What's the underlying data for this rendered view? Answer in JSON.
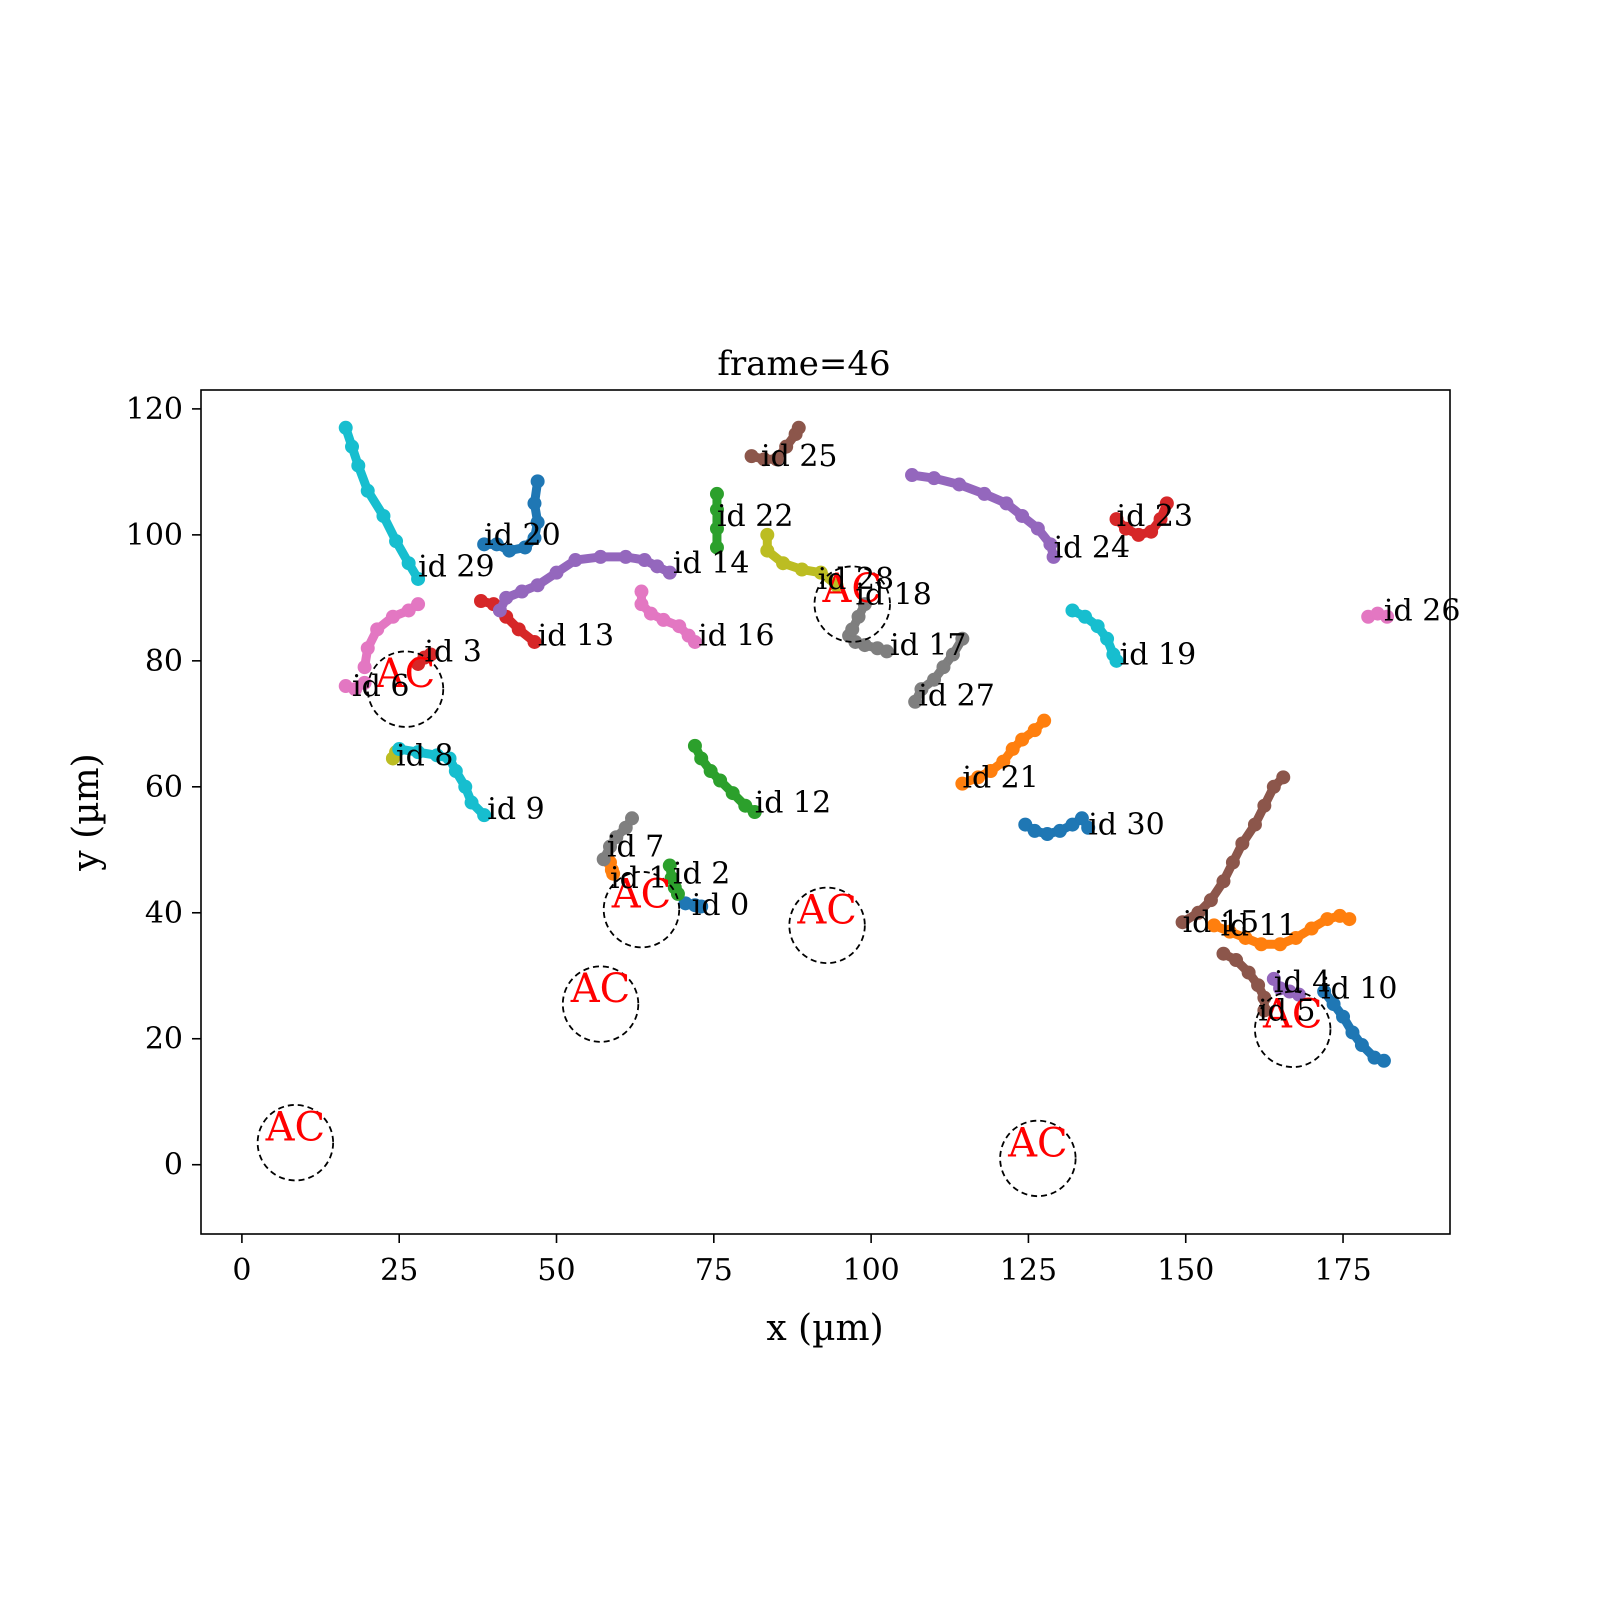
{
  "chart_data": {
    "type": "scatter",
    "title": "frame=46",
    "xlabel": "x (µm)",
    "ylabel": "y (µm)",
    "xlim": [
      -6.5,
      192
    ],
    "ylim": [
      -11,
      123
    ],
    "xticks": [
      0,
      25,
      50,
      75,
      100,
      125,
      150,
      175
    ],
    "yticks": [
      0,
      20,
      40,
      60,
      80,
      100,
      120
    ],
    "grid": false,
    "ac_label": "AC",
    "ac_sites": [
      {
        "x": 8.5,
        "y": 3.5
      },
      {
        "x": 26.0,
        "y": 75.5
      },
      {
        "x": 57.0,
        "y": 25.5
      },
      {
        "x": 63.5,
        "y": 40.5
      },
      {
        "x": 93.0,
        "y": 38.0
      },
      {
        "x": 97.0,
        "y": 89.0
      },
      {
        "x": 126.5,
        "y": 1.0
      },
      {
        "x": 167.0,
        "y": 21.5
      }
    ],
    "ac_radius": 6,
    "series": [
      {
        "id": "id 0",
        "color": "#1f77b4",
        "points": [
          [
            70.5,
            41.5
          ],
          [
            72,
            41.2
          ],
          [
            73,
            41
          ]
        ]
      },
      {
        "id": "id 1",
        "color": "#ff7f0e",
        "points": [
          [
            58.5,
            48
          ],
          [
            58.8,
            46.8
          ],
          [
            59,
            46.2
          ]
        ]
      },
      {
        "id": "id 2",
        "color": "#2ca02c",
        "points": [
          [
            68,
            47.5
          ],
          [
            68.3,
            45.5
          ],
          [
            68.8,
            44
          ],
          [
            69.3,
            43
          ]
        ]
      },
      {
        "id": "id 3",
        "color": "#d62728",
        "points": [
          [
            28,
            79.5
          ],
          [
            29,
            80.5
          ],
          [
            30,
            81
          ]
        ]
      },
      {
        "id": "id 4",
        "color": "#9467bd",
        "points": [
          [
            164,
            29.5
          ],
          [
            165,
            28
          ],
          [
            166.5,
            27.5
          ],
          [
            168,
            27
          ]
        ]
      },
      {
        "id": "id 5",
        "color": "#8c564b",
        "points": [
          [
            156,
            33.5
          ],
          [
            158,
            32.5
          ],
          [
            160,
            30.5
          ],
          [
            161.5,
            28.5
          ],
          [
            162.5,
            26.5
          ],
          [
            162.5,
            24.5
          ]
        ]
      },
      {
        "id": "id 6",
        "color": "#e377c2",
        "points": [
          [
            16.5,
            76
          ],
          [
            18,
            75.5
          ],
          [
            19.5,
            76.5
          ]
        ]
      },
      {
        "id": "id 7",
        "color": "#7f7f7f",
        "points": [
          [
            57.5,
            48.5
          ],
          [
            58.5,
            50.5
          ],
          [
            59.5,
            52
          ],
          [
            61,
            53.5
          ],
          [
            62,
            55
          ]
        ]
      },
      {
        "id": "id 8",
        "color": "#bcbd22",
        "points": [
          [
            24,
            64.5
          ],
          [
            24.5,
            65.5
          ]
        ]
      },
      {
        "id": "id 9",
        "color": "#17becf",
        "points": [
          [
            25,
            66
          ],
          [
            28,
            65.5
          ],
          [
            31,
            65
          ],
          [
            33,
            64.5
          ],
          [
            34,
            62.5
          ],
          [
            35.5,
            60
          ],
          [
            36.5,
            57.5
          ],
          [
            38.5,
            55.5
          ]
        ]
      },
      {
        "id": "id 10",
        "color": "#1f77b4",
        "points": [
          [
            172,
            27.5
          ],
          [
            173.5,
            25.5
          ],
          [
            175,
            23.5
          ],
          [
            176.5,
            21
          ],
          [
            178,
            19
          ],
          [
            180,
            17
          ],
          [
            181.5,
            16.5
          ]
        ]
      },
      {
        "id": "id 11",
        "color": "#ff7f0e",
        "points": [
          [
            154.5,
            38
          ],
          [
            157,
            37
          ],
          [
            159.5,
            36
          ],
          [
            162,
            35
          ],
          [
            165,
            35
          ],
          [
            167.5,
            36
          ],
          [
            170,
            37.5
          ],
          [
            172.5,
            39
          ],
          [
            174.5,
            39.5
          ],
          [
            176,
            39
          ]
        ]
      },
      {
        "id": "id 12",
        "color": "#2ca02c",
        "points": [
          [
            72,
            66.5
          ],
          [
            73,
            64.5
          ],
          [
            74.5,
            62.5
          ],
          [
            76,
            61
          ],
          [
            78,
            59
          ],
          [
            80,
            57
          ],
          [
            81.5,
            56
          ]
        ]
      },
      {
        "id": "id 13",
        "color": "#d62728",
        "points": [
          [
            38,
            89.5
          ],
          [
            40,
            89
          ],
          [
            42,
            87
          ],
          [
            44,
            85
          ],
          [
            46.5,
            83
          ]
        ]
      },
      {
        "id": "id 14",
        "color": "#9467bd",
        "points": [
          [
            41,
            88
          ],
          [
            42,
            90
          ],
          [
            44.5,
            91
          ],
          [
            47,
            92
          ],
          [
            50,
            94
          ],
          [
            53,
            96
          ],
          [
            57,
            96.5
          ],
          [
            61,
            96.5
          ],
          [
            64,
            96
          ],
          [
            66,
            95
          ],
          [
            68,
            94
          ]
        ]
      },
      {
        "id": "id 15",
        "color": "#8c564b",
        "points": [
          [
            149.5,
            38.5
          ],
          [
            152,
            40
          ],
          [
            154,
            42
          ],
          [
            156,
            45
          ],
          [
            157.5,
            48
          ],
          [
            159,
            51
          ],
          [
            161,
            54
          ],
          [
            162.5,
            57
          ],
          [
            164,
            60
          ],
          [
            165.5,
            61.5
          ]
        ]
      },
      {
        "id": "id 16",
        "color": "#e377c2",
        "points": [
          [
            63.5,
            91
          ],
          [
            63.5,
            89
          ],
          [
            65,
            87.5
          ],
          [
            67,
            86.5
          ],
          [
            69.5,
            85.5
          ],
          [
            71,
            84
          ],
          [
            72,
            83
          ]
        ]
      },
      {
        "id": "id 17",
        "color": "#7f7f7f",
        "points": [
          [
            96.5,
            84
          ],
          [
            97.5,
            83
          ],
          [
            99,
            82.5
          ],
          [
            101,
            82
          ],
          [
            102.5,
            81.5
          ]
        ]
      },
      {
        "id": "id 18",
        "color": "#7f7f7f",
        "points": [
          [
            97,
            85
          ],
          [
            98,
            87
          ],
          [
            99,
            89
          ]
        ]
      },
      {
        "id": "id 19",
        "color": "#17becf",
        "points": [
          [
            132,
            88
          ],
          [
            134,
            87
          ],
          [
            136,
            85.5
          ],
          [
            137.5,
            83.5
          ],
          [
            138.5,
            81
          ],
          [
            139,
            80
          ]
        ]
      },
      {
        "id": "id 20",
        "color": "#1f77b4",
        "points": [
          [
            38.5,
            98.5
          ],
          [
            40.5,
            98.5
          ],
          [
            42.5,
            97.5
          ],
          [
            45,
            98
          ],
          [
            46.5,
            99.5
          ],
          [
            47,
            102
          ],
          [
            46.5,
            105
          ],
          [
            47,
            108.5
          ]
        ]
      },
      {
        "id": "id 21",
        "color": "#ff7f0e",
        "points": [
          [
            114.5,
            60.5
          ],
          [
            117,
            61.5
          ],
          [
            119,
            62.5
          ],
          [
            121,
            64
          ],
          [
            122.5,
            66
          ],
          [
            124,
            67.5
          ],
          [
            126,
            69
          ],
          [
            127.5,
            70.5
          ]
        ]
      },
      {
        "id": "id 22",
        "color": "#2ca02c",
        "points": [
          [
            75.5,
            98
          ],
          [
            75.5,
            101
          ],
          [
            75.5,
            104
          ],
          [
            75.5,
            106.5
          ]
        ]
      },
      {
        "id": "id 23",
        "color": "#d62728",
        "points": [
          [
            139,
            102.5
          ],
          [
            140.5,
            101
          ],
          [
            142.5,
            100
          ],
          [
            144.5,
            100.5
          ],
          [
            146,
            102.5
          ],
          [
            147,
            105
          ]
        ]
      },
      {
        "id": "id 24",
        "color": "#9467bd",
        "points": [
          [
            106.5,
            109.5
          ],
          [
            110,
            109
          ],
          [
            114,
            108
          ],
          [
            118,
            106.5
          ],
          [
            121.5,
            105
          ],
          [
            124,
            103
          ],
          [
            126.5,
            101
          ],
          [
            128.5,
            98.5
          ],
          [
            129,
            96.5
          ]
        ]
      },
      {
        "id": "id 25",
        "color": "#8c564b",
        "points": [
          [
            81,
            112.5
          ],
          [
            83,
            112
          ],
          [
            85,
            112
          ],
          [
            86.5,
            114
          ],
          [
            88,
            116
          ],
          [
            88.5,
            117
          ]
        ]
      },
      {
        "id": "id 26",
        "color": "#e377c2",
        "points": [
          [
            179,
            87
          ],
          [
            180.5,
            87.5
          ],
          [
            182,
            87
          ]
        ]
      },
      {
        "id": "id 27",
        "color": "#7f7f7f",
        "points": [
          [
            107,
            73.5
          ],
          [
            108,
            75.5
          ],
          [
            110,
            77
          ],
          [
            111.5,
            79
          ],
          [
            113,
            81
          ],
          [
            114.5,
            83.5
          ]
        ]
      },
      {
        "id": "id 28",
        "color": "#bcbd22",
        "points": [
          [
            83.5,
            100
          ],
          [
            83.5,
            97.5
          ],
          [
            86,
            95.5
          ],
          [
            89,
            94.5
          ],
          [
            92,
            94
          ],
          [
            94.5,
            92
          ]
        ]
      },
      {
        "id": "id 29",
        "color": "#17becf",
        "points": [
          [
            16.5,
            117
          ],
          [
            17.5,
            114
          ],
          [
            18.5,
            111
          ],
          [
            20,
            107
          ],
          [
            22.5,
            103
          ],
          [
            24.5,
            99
          ],
          [
            26.5,
            95.5
          ],
          [
            28,
            93
          ]
        ]
      },
      {
        "id": "id 3 (track)",
        "color": "#e377c2",
        "points": [
          [
            19.5,
            79
          ],
          [
            20,
            82
          ],
          [
            21.5,
            85
          ],
          [
            24,
            87
          ],
          [
            26.5,
            88
          ],
          [
            28,
            89
          ]
        ]
      },
      {
        "id": "id 30",
        "color": "#1f77b4",
        "points": [
          [
            124.5,
            54
          ],
          [
            126,
            53
          ],
          [
            128,
            52.5
          ],
          [
            130,
            53
          ],
          [
            132,
            54
          ],
          [
            133.5,
            55
          ],
          [
            134.5,
            53.5
          ]
        ]
      }
    ],
    "labels": [
      {
        "text": "id 0",
        "x": 71.5,
        "y": 41.2
      },
      {
        "text": "id 1",
        "x": 58.5,
        "y": 45.5
      },
      {
        "text": "id 2",
        "x": 68.5,
        "y": 46.2
      },
      {
        "text": "id 3",
        "x": 29.0,
        "y": 81.5
      },
      {
        "text": "id 4",
        "x": 164.0,
        "y": 29.0
      },
      {
        "text": "id 5",
        "x": 161.5,
        "y": 24.5
      },
      {
        "text": "id 6",
        "x": 17.5,
        "y": 76.0
      },
      {
        "text": "id 7",
        "x": 58.0,
        "y": 50.5
      },
      {
        "text": "id 8",
        "x": 24.5,
        "y": 65.0
      },
      {
        "text": "id 9",
        "x": 39.0,
        "y": 56.5
      },
      {
        "text": "id 10",
        "x": 171.5,
        "y": 28.0
      },
      {
        "text": "id 11",
        "x": 155.5,
        "y": 38.0
      },
      {
        "text": "id 12",
        "x": 81.5,
        "y": 57.5
      },
      {
        "text": "id 13",
        "x": 47.0,
        "y": 84.0
      },
      {
        "text": "id 14",
        "x": 68.5,
        "y": 95.5
      },
      {
        "text": "id 15",
        "x": 149.5,
        "y": 38.5
      },
      {
        "text": "id 16",
        "x": 72.5,
        "y": 84.0
      },
      {
        "text": "id 17",
        "x": 103.0,
        "y": 82.5
      },
      {
        "text": "id 18",
        "x": 97.5,
        "y": 90.5
      },
      {
        "text": "id 19",
        "x": 139.5,
        "y": 81.0
      },
      {
        "text": "id 20",
        "x": 38.5,
        "y": 100.0
      },
      {
        "text": "id 21",
        "x": 114.5,
        "y": 61.5
      },
      {
        "text": "id 22",
        "x": 75.5,
        "y": 103.0
      },
      {
        "text": "id 23",
        "x": 139.0,
        "y": 103.0
      },
      {
        "text": "id 24",
        "x": 129.0,
        "y": 98.0
      },
      {
        "text": "id 25",
        "x": 82.5,
        "y": 112.5
      },
      {
        "text": "id 26",
        "x": 181.5,
        "y": 88.0
      },
      {
        "text": "id 27",
        "x": 107.5,
        "y": 74.5
      },
      {
        "text": "id 28",
        "x": 91.5,
        "y": 93.0
      },
      {
        "text": "id 29",
        "x": 28.0,
        "y": 95.0
      },
      {
        "text": "id 30",
        "x": 134.5,
        "y": 54.0
      }
    ]
  }
}
